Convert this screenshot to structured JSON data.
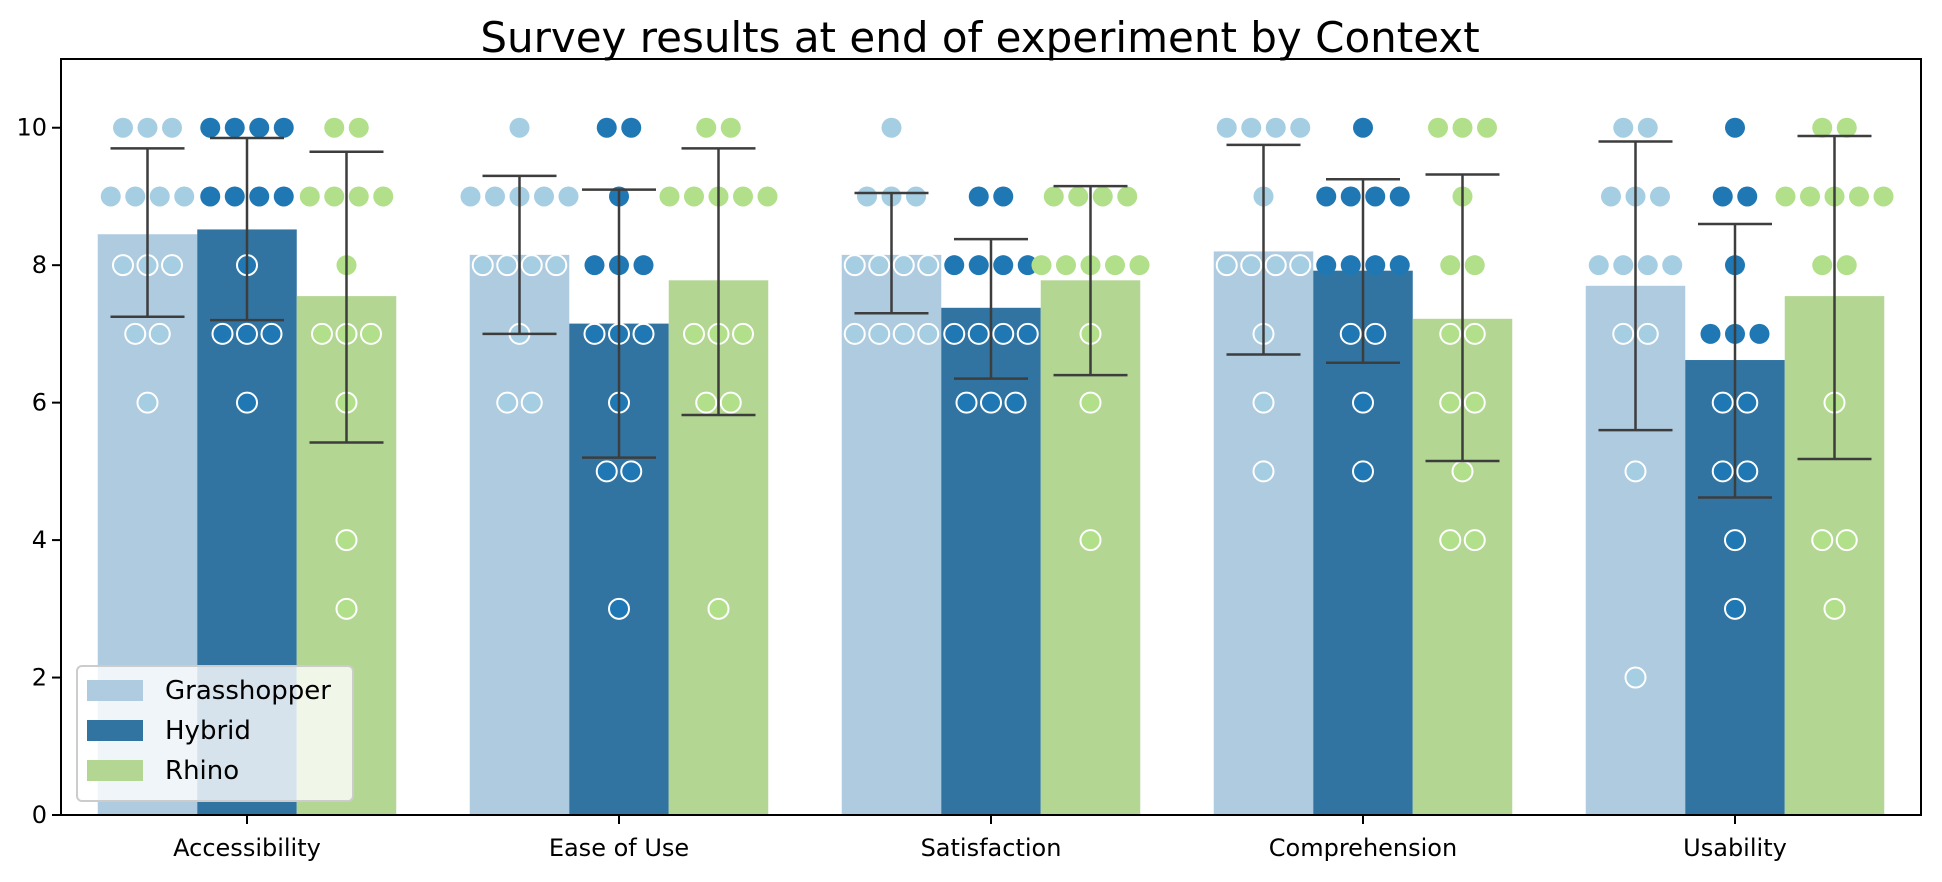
{
  "chart_data": {
    "type": "bar",
    "title": "Survey results at end of experiment by Context",
    "xlabel": "",
    "ylabel": "",
    "ylim": [
      0,
      11
    ],
    "yticks": [
      0,
      2,
      4,
      6,
      8,
      10
    ],
    "categories": [
      "Accessibility",
      "Ease of Use",
      "Satisfaction",
      "Comprehension",
      "Usability"
    ],
    "legend_position": "lower-left",
    "grid": false,
    "series": [
      {
        "name": "Grasshopper",
        "color": "#a6cee3",
        "bar_color": "#afcbdf",
        "values": [
          8.45,
          8.15,
          8.15,
          8.2,
          7.7
        ],
        "ci": [
          [
            7.25,
            9.7
          ],
          [
            7.0,
            9.3
          ],
          [
            7.3,
            9.05
          ],
          [
            6.7,
            9.75
          ],
          [
            5.6,
            9.8
          ]
        ],
        "points": [
          [
            10,
            10,
            10,
            9,
            9,
            9,
            9,
            8,
            8,
            8,
            7,
            7,
            6
          ],
          [
            10,
            9,
            9,
            9,
            9,
            9,
            8,
            8,
            8,
            8,
            7,
            6,
            6
          ],
          [
            10,
            9,
            9,
            9,
            8,
            8,
            8,
            8,
            7,
            7,
            7,
            7
          ],
          [
            10,
            10,
            10,
            10,
            9,
            8,
            8,
            8,
            8,
            7,
            6,
            5
          ],
          [
            10,
            10,
            9,
            9,
            9,
            8,
            8,
            8,
            8,
            7,
            7,
            5,
            2
          ]
        ]
      },
      {
        "name": "Hybrid",
        "color": "#1f78b4",
        "bar_color": "#3274a1",
        "values": [
          8.52,
          7.15,
          7.38,
          7.92,
          6.62
        ],
        "ci": [
          [
            7.2,
            9.85
          ],
          [
            5.2,
            9.1
          ],
          [
            6.35,
            8.38
          ],
          [
            6.58,
            9.25
          ],
          [
            4.62,
            8.6
          ]
        ],
        "points": [
          [
            10,
            10,
            10,
            10,
            9,
            9,
            9,
            9,
            8,
            7,
            7,
            7,
            6
          ],
          [
            10,
            10,
            9,
            8,
            8,
            8,
            7,
            7,
            7,
            6,
            5,
            5,
            3
          ],
          [
            9,
            9,
            8,
            8,
            8,
            8,
            7,
            7,
            7,
            7,
            6,
            6,
            6
          ],
          [
            10,
            9,
            9,
            9,
            9,
            8,
            8,
            8,
            8,
            7,
            7,
            6,
            5
          ],
          [
            10,
            9,
            9,
            8,
            7,
            7,
            7,
            6,
            6,
            5,
            5,
            4,
            3
          ]
        ]
      },
      {
        "name": "Rhino",
        "color": "#b2df8a",
        "bar_color": "#b3d693",
        "values": [
          7.55,
          7.78,
          7.78,
          7.22,
          7.55
        ],
        "ci": [
          [
            5.42,
            9.65
          ],
          [
            5.82,
            9.7
          ],
          [
            6.4,
            9.15
          ],
          [
            5.15,
            9.32
          ],
          [
            5.18,
            9.88
          ]
        ],
        "points": [
          [
            10,
            10,
            9,
            9,
            9,
            9,
            8,
            7,
            7,
            7,
            6,
            4,
            3
          ],
          [
            10,
            10,
            9,
            9,
            9,
            9,
            9,
            7,
            7,
            7,
            6,
            6,
            3
          ],
          [
            9,
            9,
            9,
            9,
            8,
            8,
            8,
            8,
            8,
            7,
            6,
            4
          ],
          [
            10,
            10,
            10,
            9,
            8,
            8,
            7,
            7,
            6,
            6,
            5,
            4,
            4
          ],
          [
            10,
            10,
            9,
            9,
            9,
            9,
            9,
            8,
            8,
            6,
            4,
            4,
            3
          ]
        ]
      }
    ]
  }
}
